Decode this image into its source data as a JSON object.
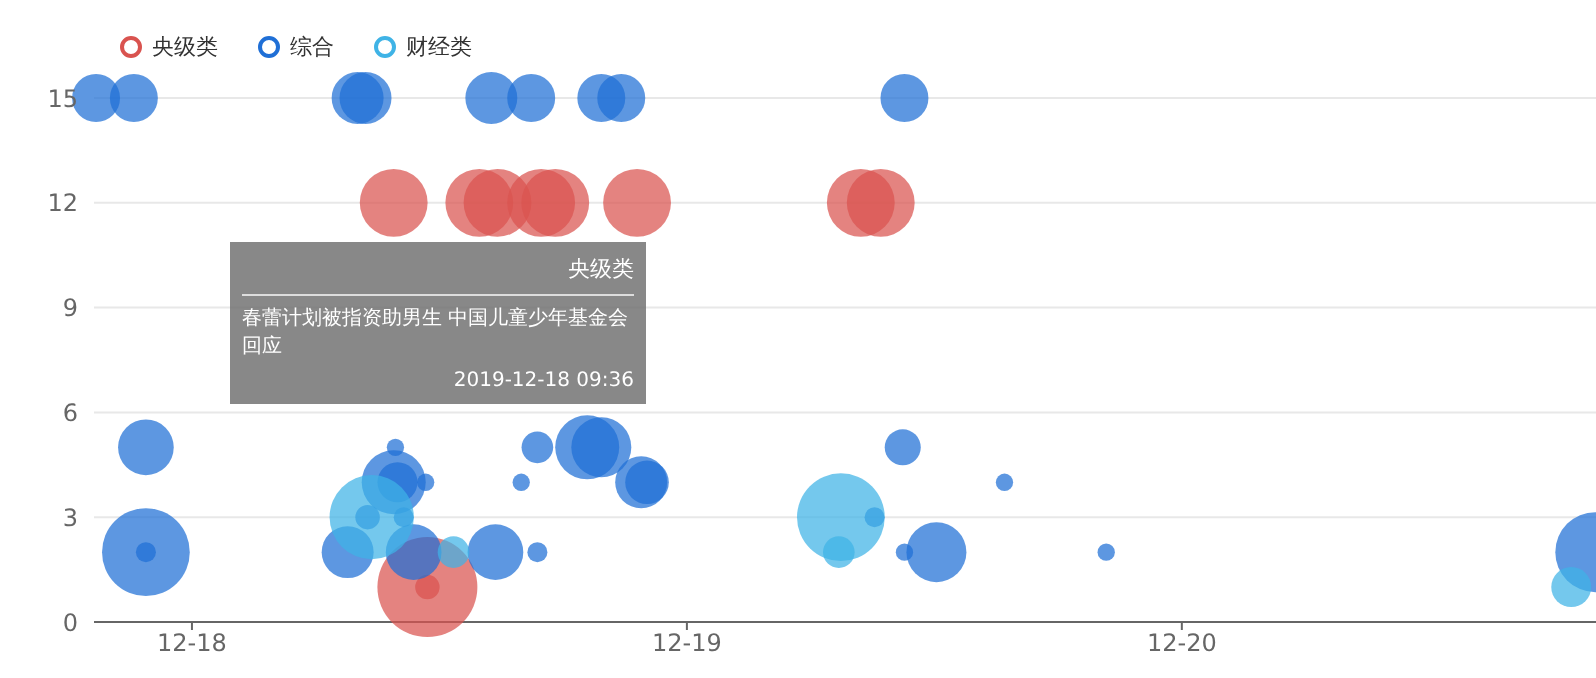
{
  "chart_data": {
    "type": "bubble",
    "legend": "top left",
    "grid": "y",
    "xlim": [
      "2019-12-17T19:15",
      "2019-12-20T20:05"
    ],
    "xticks": [
      {
        "value": "2019-12-18",
        "label": "12-18"
      },
      {
        "value": "2019-12-19",
        "label": "12-19"
      },
      {
        "value": "2019-12-20",
        "label": "12-20"
      }
    ],
    "ylim": [
      0,
      15
    ],
    "yticks": [
      0,
      3,
      6,
      9,
      12,
      15
    ],
    "annotations": [
      "央级类",
      "春蕾计划被指资助男生 中国儿童少年基金会回应",
      "2019-12-18 09:36"
    ],
    "series": [
      {
        "name": "央级类",
        "color": "#d9534f",
        "x": [
          "2019-12-18T09:47",
          "2019-12-18T13:56",
          "2019-12-18T14:49",
          "2019-12-18T16:56",
          "2019-12-18T17:37",
          "2019-12-18T21:35",
          "2019-12-19T08:26",
          "2019-12-19T09:24",
          "2019-12-18T11:25",
          "2019-12-18T11:25"
        ],
        "values": [
          12,
          12,
          12,
          12,
          12,
          12,
          12,
          12,
          1,
          1
        ],
        "sizes": [
          0.46,
          0.46,
          0.46,
          0.46,
          0.46,
          0.46,
          0.46,
          0.46,
          0.06,
          1
        ]
      },
      {
        "name": "综合",
        "color": "#1f6fd6",
        "x": [
          "2019-12-17T19:21",
          "2019-12-17T21:11",
          "2019-12-18T08:02",
          "2019-12-18T08:25",
          "2019-12-18T14:31",
          "2019-12-18T16:27",
          "2019-12-18T19:51",
          "2019-12-18T20:49",
          "2019-12-19T10:33",
          "2019-12-17T21:46",
          "2019-12-17T21:46",
          "2019-12-17T21:46",
          "2019-12-18T09:52",
          "2019-12-18T09:47",
          "2019-12-18T09:58",
          "2019-12-18T11:20",
          "2019-12-18T08:31",
          "2019-12-18T10:16",
          "2019-12-18T07:33",
          "2019-12-18T10:45",
          "2019-12-18T14:43",
          "2019-12-18T16:45",
          "2019-12-18T15:58",
          "2019-12-18T16:45",
          "2019-12-18T19:10",
          "2019-12-18T19:51",
          "2019-12-18T21:47",
          "2019-12-18T22:04",
          "2019-12-19T10:28",
          "2019-12-19T09:06",
          "2019-12-19T10:33",
          "2019-12-19T12:06",
          "2019-12-19T15:24",
          "2019-12-19T20:20",
          "2019-12-20T20:03"
        ],
        "values": [
          15,
          15,
          15,
          15,
          15,
          15,
          15,
          15,
          15,
          5,
          2,
          2,
          5,
          4,
          4,
          4,
          3,
          3,
          2,
          2,
          2,
          5,
          4,
          2,
          5,
          5,
          4,
          4,
          5,
          3,
          2,
          2,
          4,
          2,
          2
        ],
        "sizes": [
          0.23,
          0.23,
          0.27,
          0.27,
          0.27,
          0.23,
          0.23,
          0.23,
          0.23,
          0.31,
          0.77,
          0.04,
          0.03,
          0.41,
          0.16,
          0.03,
          0.06,
          0.04,
          0.27,
          0.31,
          0.31,
          0.1,
          0.03,
          0.04,
          0.41,
          0.36,
          0.27,
          0.19,
          0.13,
          0.04,
          0.03,
          0.36,
          0.03,
          0.03,
          0.64
        ]
      },
      {
        "name": "财经类",
        "color": "#3fb3e6",
        "x": [
          "2019-12-18T08:43",
          "2019-12-18T12:41",
          "2019-12-19T07:28",
          "2019-12-19T07:22",
          "2019-12-20T18:53"
        ],
        "values": [
          3,
          2,
          3,
          2,
          1
        ],
        "sizes": [
          0.71,
          0.1,
          0.77,
          0.1,
          0.16
        ]
      }
    ]
  }
}
